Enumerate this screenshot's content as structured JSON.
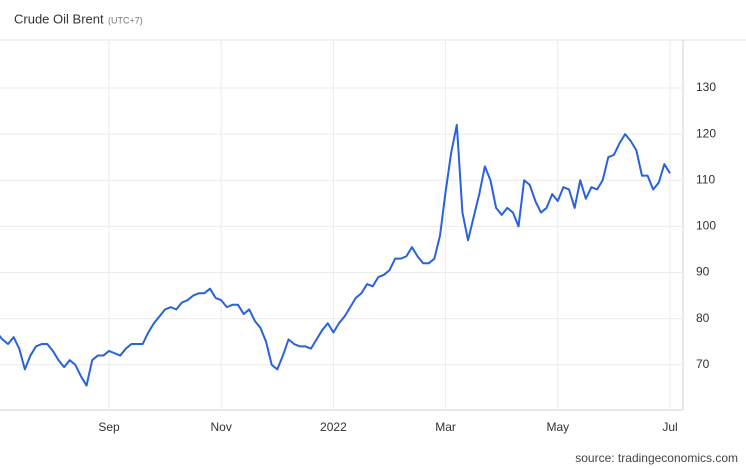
{
  "chart_data": {
    "type": "line",
    "title": "Crude Oil Brent",
    "subtitle": "(UTC+7)",
    "source": "source: tradingeconomics.com",
    "categories": [
      null,
      null,
      null,
      null,
      null,
      null,
      null,
      null,
      null,
      null,
      null,
      null,
      null,
      null,
      null,
      null,
      null,
      null,
      null,
      null,
      "Sep",
      null,
      null,
      null,
      null,
      null,
      null,
      null,
      null,
      null,
      null,
      null,
      null,
      null,
      null,
      null,
      null,
      null,
      null,
      null,
      "Nov",
      null,
      null,
      null,
      null,
      null,
      null,
      null,
      null,
      null,
      null,
      null,
      null,
      null,
      null,
      null,
      null,
      null,
      null,
      null,
      "2022",
      null,
      null,
      null,
      null,
      null,
      null,
      null,
      null,
      null,
      null,
      null,
      null,
      null,
      null,
      null,
      null,
      null,
      null,
      null,
      "Mar",
      null,
      null,
      null,
      null,
      null,
      null,
      null,
      null,
      null,
      null,
      null,
      null,
      null,
      null,
      null,
      null,
      null,
      null,
      null,
      "May",
      null,
      null,
      null,
      null,
      null,
      null,
      null,
      null,
      null,
      null,
      null,
      null,
      null,
      null,
      null,
      null,
      null,
      null,
      null,
      "Jul"
    ],
    "values": [
      77,
      75.5,
      74.5,
      76,
      73.5,
      69,
      72,
      74,
      74.5,
      74.5,
      73,
      71,
      69.5,
      71,
      70,
      67.5,
      65.5,
      71,
      72,
      72,
      73,
      72.5,
      72,
      73.5,
      74.5,
      74.5,
      74.5,
      77,
      79,
      80.5,
      82,
      82.5,
      82,
      83.5,
      84,
      85,
      85.5,
      85.5,
      86.5,
      84.5,
      84,
      82.5,
      83,
      83,
      81,
      82,
      79.5,
      78,
      75,
      70,
      69,
      72,
      75.5,
      74.5,
      74,
      74,
      73.5,
      75.5,
      77.5,
      79,
      77,
      79,
      80.5,
      82.5,
      84.5,
      85.5,
      87.5,
      87,
      89,
      89.5,
      90.5,
      93,
      93,
      93.5,
      95.5,
      93.5,
      92,
      92,
      93,
      98,
      107.5,
      116,
      122,
      103,
      97,
      102,
      107,
      113,
      110,
      104,
      102.5,
      104,
      103,
      100,
      110,
      109,
      105.5,
      103,
      104,
      107,
      105.5,
      108.5,
      108,
      104,
      110,
      106,
      108.5,
      108,
      110,
      115,
      115.5,
      118,
      120,
      118.5,
      116.5,
      111,
      111,
      108,
      109.5,
      113.5,
      111.5
    ],
    "color": "#2962d9",
    "ylim": [
      60.2,
      140.4
    ],
    "yticks": [
      70,
      80,
      90,
      100,
      110,
      120,
      130
    ],
    "grid": true
  }
}
